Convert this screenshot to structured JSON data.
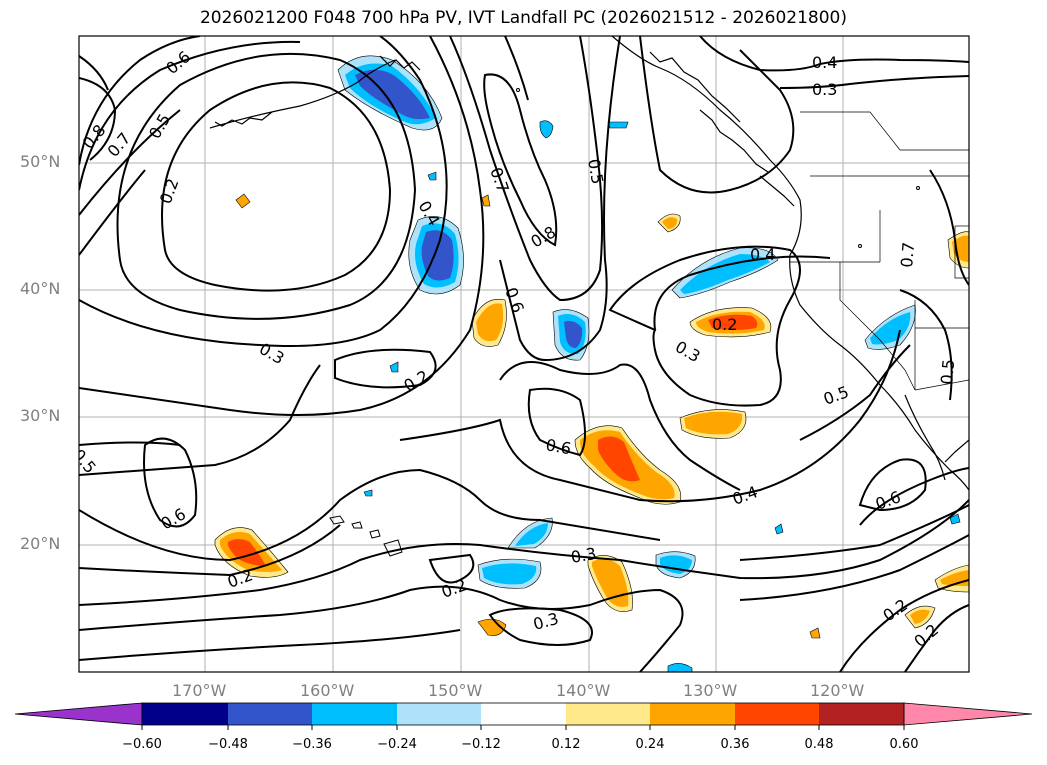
{
  "title": "2026021200 F048 700 hPa PV, IVT Landfall PC (2026021512 - 2026021800)",
  "lat_labels": [
    "50°N",
    "40°N",
    "30°N",
    "20°N"
  ],
  "lon_labels": [
    "170°W",
    "160°W",
    "150°W",
    "140°W",
    "130°W",
    "120°W"
  ],
  "contour_labels": [
    "0.6",
    "0.8",
    "0.7",
    "0.5",
    "0.2",
    "0.4",
    "0.7",
    "0.5",
    "0.8",
    "0.6",
    "0.4",
    "0.3",
    "0.4",
    "0.3",
    "0.2",
    "0.3",
    "0.2",
    "0.6",
    "0.5",
    "0.4",
    "0.5",
    "0.6",
    "0.6",
    "0.3",
    "0.2",
    "0.3",
    "0.2",
    "0.2",
    "0.2",
    "0.5",
    "0.7"
  ],
  "colorbar": {
    "ticks": [
      "−0.60",
      "−0.48",
      "−0.36",
      "−0.24",
      "−0.12",
      "0.12",
      "0.24",
      "0.36",
      "0.48",
      "0.60"
    ],
    "colors": [
      "#9933cc",
      "#00008b",
      "#3355cc",
      "#00bfff",
      "#aee2fa",
      "#ffffff",
      "#ffe98a",
      "#ffa500",
      "#ff4500",
      "#b22222",
      "#ff88aa"
    ]
  },
  "colors": {
    "strong_negative": "#3355cc",
    "negative": "#00bfff",
    "weak_negative": "#aee2fa",
    "weak_positive": "#ffe98a",
    "positive": "#ffa500",
    "strong_positive": "#ff4500"
  }
}
